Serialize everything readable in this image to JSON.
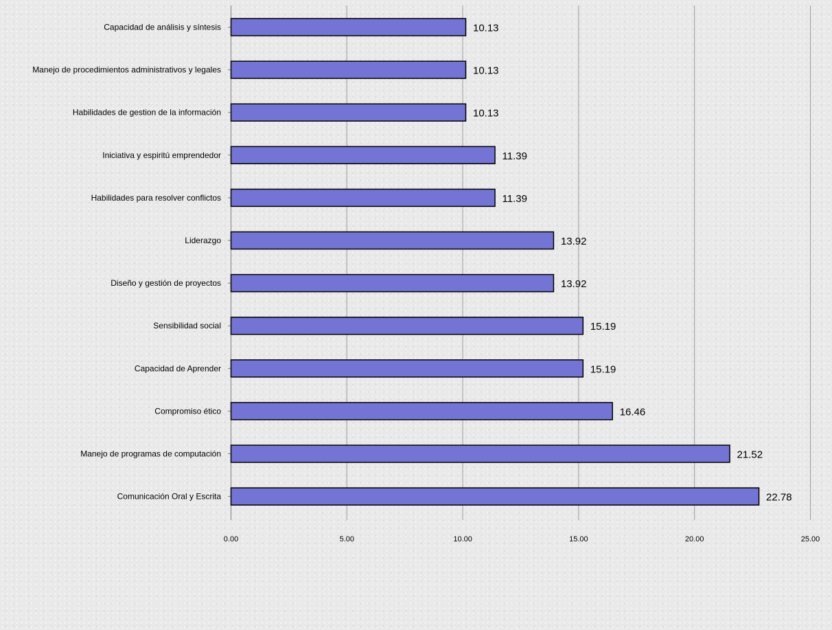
{
  "chart_data": {
    "type": "bar",
    "orientation": "horizontal",
    "title": "",
    "xlabel": "",
    "ylabel": "",
    "xlim": [
      0,
      25
    ],
    "x_ticks": [
      "0.00",
      "5.00",
      "10.00",
      "15.00",
      "20.00",
      "25.00"
    ],
    "x_tick_values": [
      0,
      5,
      10,
      15,
      20,
      25
    ],
    "grid": "vertical",
    "legend": "none",
    "bar_color": "#7474d4",
    "bar_border_color": "#000000",
    "gridline_color": "#9a9a9a",
    "categories": [
      "Capacidad de análisis y síntesis",
      "Manejo de procedimientos administrativos y legales",
      "Habilidades de gestion de la información",
      "Iniciativa y espiritú emprendedor",
      "Habilidades para resolver conflictos",
      "Liderazgo",
      "Diseño y gestión de proyectos",
      "Sensibilidad social",
      "Capacidad de Aprender",
      "Compromiso ético",
      "Manejo de programas de computación",
      "Comunicación Oral y Escrita"
    ],
    "values": [
      10.13,
      10.13,
      10.13,
      11.39,
      11.39,
      13.92,
      13.92,
      15.19,
      15.19,
      16.46,
      21.52,
      22.78
    ],
    "value_labels": [
      "10.13",
      "10.13",
      "10.13",
      "11.39",
      "11.39",
      "13.92",
      "13.92",
      "15.19",
      "15.19",
      "16.46",
      "21.52",
      "22.78"
    ]
  }
}
